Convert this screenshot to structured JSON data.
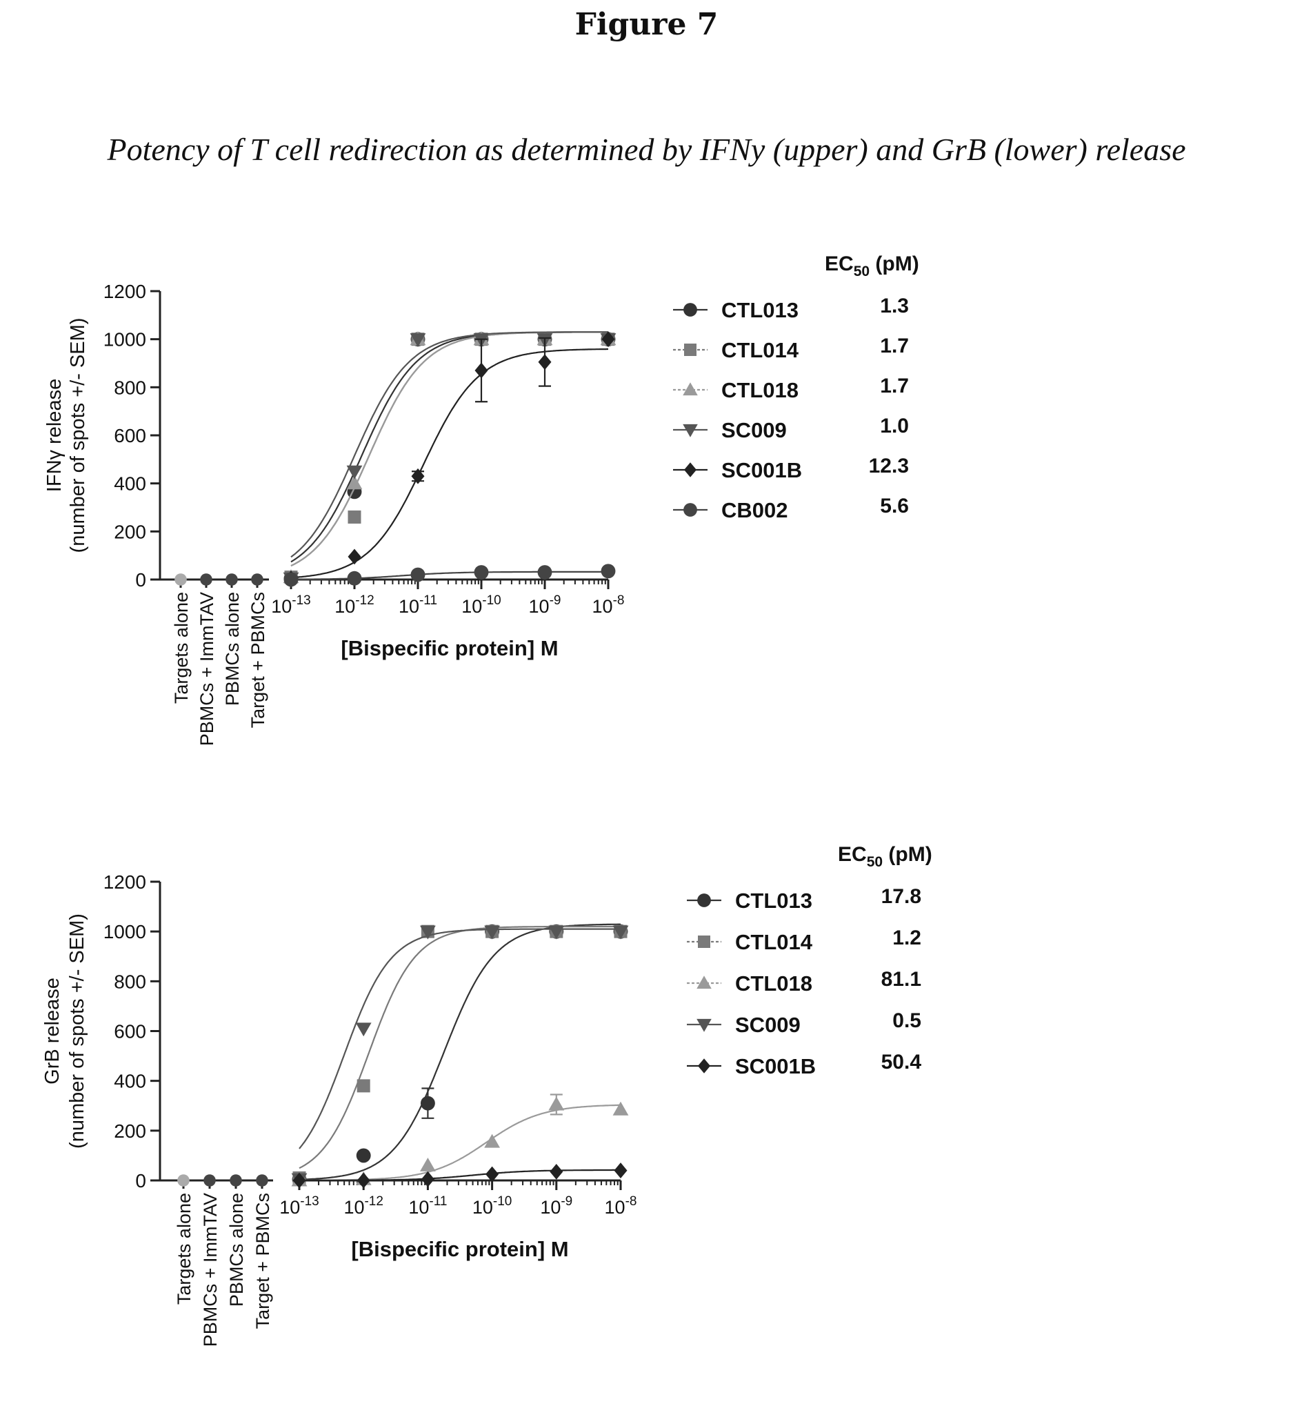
{
  "figure": {
    "title": "Figure 7",
    "subtitle": "Potency of T cell redirection as determined by IFNy (upper) and GrB (lower) release"
  },
  "chart_data": [
    {
      "type": "scatter",
      "ylabel_line1": "IFNγ release",
      "ylabel_line2": "(number of spots +/- SEM)",
      "xlabel": "[Bispecific protein]  M",
      "ylim": [
        0,
        1200
      ],
      "yticks": [
        0,
        200,
        400,
        600,
        800,
        1000,
        1200
      ],
      "xscale": "log",
      "xlim": [
        1e-13,
        1e-08
      ],
      "xtick_labels": [
        {
          "base": "10",
          "exp": "-13",
          "value": 1e-13
        },
        {
          "base": "10",
          "exp": "-12",
          "value": 1e-12
        },
        {
          "base": "10",
          "exp": "-11",
          "value": 1e-11
        },
        {
          "base": "10",
          "exp": "-10",
          "value": 1e-10
        },
        {
          "base": "10",
          "exp": "-9",
          "value": 1e-09
        },
        {
          "base": "10",
          "exp": "-8",
          "value": 1e-08
        }
      ],
      "controls": {
        "categories": [
          "Targets alone",
          "PBMCs + ImmTAV",
          "PBMCs alone",
          "Target + PBMCs"
        ],
        "values": [
          0,
          0,
          0,
          0
        ]
      },
      "legend": {
        "placement": "right",
        "header_main": "EC",
        "header_sub": "50",
        "header_unit": " (pM)"
      },
      "x": [
        1e-13,
        1e-12,
        1e-11,
        1e-10,
        1e-09,
        1e-08
      ],
      "series": [
        {
          "name": "CTL013",
          "ec50": "1.3",
          "marker": "circle",
          "color": "#333333",
          "values": [
            5,
            365,
            1000,
            1000,
            1000,
            1000
          ],
          "fit": {
            "bottom": 0,
            "top": 1030,
            "ec50_M": 1.3e-12,
            "hill": 1.0
          }
        },
        {
          "name": "CTL014",
          "ec50": "1.7",
          "marker": "square",
          "color": "#7a7a7a",
          "values": [
            10,
            260,
            1000,
            1000,
            1000,
            1000
          ],
          "fit": {
            "bottom": 0,
            "top": 1030,
            "ec50_M": 1.7e-12,
            "hill": 1.0
          }
        },
        {
          "name": "CTL018",
          "ec50": "1.7",
          "marker": "triangle-up",
          "color": "#9a9a9a",
          "values": [
            10,
            400,
            1000,
            1000,
            1000,
            1000
          ],
          "fit": {
            "bottom": 0,
            "top": 1030,
            "ec50_M": 1.7e-12,
            "hill": 1.0
          }
        },
        {
          "name": "SC009",
          "ec50": "1.0",
          "marker": "triangle-down",
          "color": "#555555",
          "values": [
            5,
            450,
            1000,
            1000,
            1000,
            1000
          ],
          "fit": {
            "bottom": 0,
            "top": 1030,
            "ec50_M": 1e-12,
            "hill": 1.0
          }
        },
        {
          "name": "SC001B",
          "ec50": "12.3",
          "marker": "diamond",
          "color": "#222222",
          "values": [
            5,
            95,
            430,
            870,
            905,
            1000
          ],
          "errors": [
            0,
            0,
            20,
            130,
            100,
            0
          ],
          "fit": {
            "bottom": 0,
            "top": 960,
            "ec50_M": 1.23e-11,
            "hill": 1.0
          }
        },
        {
          "name": "CB002",
          "ec50": "5.6",
          "marker": "circle",
          "color": "#444444",
          "values": [
            0,
            5,
            20,
            30,
            30,
            35
          ],
          "fit": {
            "bottom": 0,
            "top": 32,
            "ec50_M": 5.6e-12,
            "hill": 1.0
          }
        }
      ]
    },
    {
      "type": "scatter",
      "ylabel_line1": "GrB release",
      "ylabel_line2": "(number of spots +/- SEM)",
      "xlabel": "[Bispecific protein]  M",
      "ylim": [
        0,
        1200
      ],
      "yticks": [
        0,
        200,
        400,
        600,
        800,
        1000,
        1200
      ],
      "xscale": "log",
      "xlim": [
        1e-13,
        1e-08
      ],
      "xtick_labels": [
        {
          "base": "10",
          "exp": "-13",
          "value": 1e-13
        },
        {
          "base": "10",
          "exp": "-12",
          "value": 1e-12
        },
        {
          "base": "10",
          "exp": "-11",
          "value": 1e-11
        },
        {
          "base": "10",
          "exp": "-10",
          "value": 1e-10
        },
        {
          "base": "10",
          "exp": "-9",
          "value": 1e-09
        },
        {
          "base": "10",
          "exp": "-8",
          "value": 1e-08
        }
      ],
      "controls": {
        "categories": [
          "Targets alone",
          "PBMCs + ImmTAV",
          "PBMCs alone",
          "Target + PBMCs"
        ],
        "values": [
          0,
          0,
          0,
          0
        ]
      },
      "legend": {
        "placement": "right",
        "header_main": "EC",
        "header_sub": "50",
        "header_unit": " (pM)"
      },
      "x": [
        1e-13,
        1e-12,
        1e-11,
        1e-10,
        1e-09,
        1e-08
      ],
      "series": [
        {
          "name": "CTL013",
          "ec50": "17.8",
          "marker": "circle",
          "color": "#333333",
          "values": [
            5,
            100,
            310,
            1000,
            1000,
            1000
          ],
          "errors": [
            0,
            0,
            60,
            0,
            0,
            0
          ],
          "fit": {
            "bottom": 0,
            "top": 1030,
            "ec50_M": 1.78e-11,
            "hill": 1.1
          }
        },
        {
          "name": "CTL014",
          "ec50": "1.2",
          "marker": "square",
          "color": "#7a7a7a",
          "values": [
            10,
            380,
            1000,
            1000,
            1000,
            1000
          ],
          "fit": {
            "bottom": 0,
            "top": 1020,
            "ec50_M": 1.2e-12,
            "hill": 1.2
          }
        },
        {
          "name": "CTL018",
          "ec50": "81.1",
          "marker": "triangle-up",
          "color": "#9a9a9a",
          "values": [
            0,
            5,
            60,
            155,
            305,
            285
          ],
          "errors": [
            0,
            0,
            0,
            0,
            40,
            0
          ],
          "fit": {
            "bottom": 0,
            "top": 305,
            "ec50_M": 8.11e-11,
            "hill": 1.0
          }
        },
        {
          "name": "SC009",
          "ec50": "0.5",
          "marker": "triangle-down",
          "color": "#555555",
          "values": [
            5,
            610,
            1000,
            1000,
            1000,
            1000
          ],
          "fit": {
            "bottom": 0,
            "top": 1010,
            "ec50_M": 5e-13,
            "hill": 1.2
          }
        },
        {
          "name": "SC001B",
          "ec50": "50.4",
          "marker": "diamond",
          "color": "#222222",
          "values": [
            0,
            0,
            5,
            25,
            35,
            40
          ],
          "fit": {
            "bottom": 0,
            "top": 42,
            "ec50_M": 5.04e-11,
            "hill": 1.0
          }
        }
      ]
    }
  ]
}
